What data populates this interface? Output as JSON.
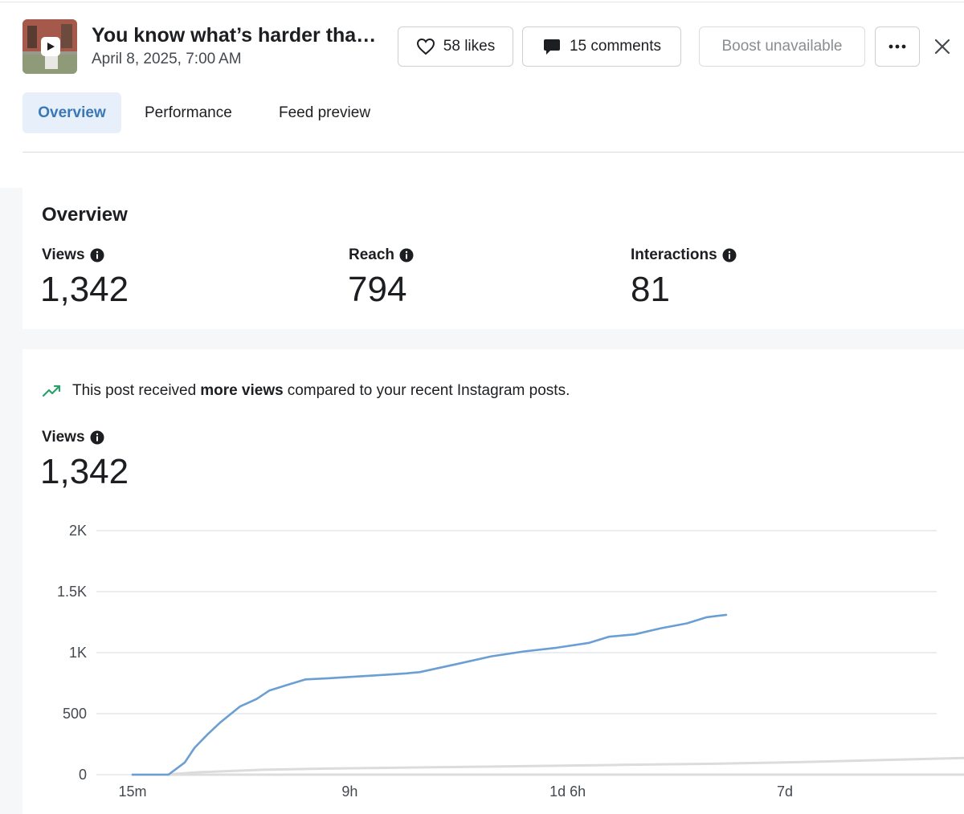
{
  "post": {
    "title": "You know what’s harder tha…",
    "date": "April 8, 2025, 7:00 AM"
  },
  "actions": {
    "likes": "58 likes",
    "comments": "15 comments",
    "boost": "Boost unavailable"
  },
  "tabs": [
    "Overview",
    "Performance",
    "Feed preview"
  ],
  "overview": {
    "title": "Overview",
    "metrics": [
      {
        "label": "Views",
        "value": "1,342"
      },
      {
        "label": "Reach",
        "value": "794"
      },
      {
        "label": "Interactions",
        "value": "81"
      }
    ]
  },
  "insight": {
    "pre": "This post received",
    "bold": "more views",
    "post": "compared to your recent Instagram posts."
  },
  "views_chart": {
    "label": "Views",
    "value": "1,342"
  },
  "colors": {
    "accent": "#3a78b5",
    "series_main": "#6b9fd4",
    "series_baseline": "#dcdcdc",
    "trend_icon": "#2aa06b"
  },
  "chart_data": {
    "type": "line",
    "y_ticks": [
      "0",
      "500",
      "1K",
      "1.5K",
      "2K"
    ],
    "y_tick_values": [
      0,
      500,
      1000,
      1500,
      2000
    ],
    "ylim": [
      0,
      2000
    ],
    "x_ticks": [
      "15m",
      "9h",
      "1d 6h",
      "7d"
    ],
    "x_tick_positions": [
      0.0,
      0.333,
      0.667,
      1.0
    ],
    "grid": true,
    "series": [
      {
        "values": [
          [
            0.0,
            0
          ],
          [
            0.04,
            0
          ],
          [
            0.055,
            0
          ],
          [
            0.08,
            100
          ],
          [
            0.095,
            220
          ],
          [
            0.115,
            330
          ],
          [
            0.135,
            430
          ],
          [
            0.165,
            560
          ],
          [
            0.19,
            620
          ],
          [
            0.21,
            690
          ],
          [
            0.24,
            740
          ],
          [
            0.265,
            780
          ],
          [
            0.3,
            790
          ],
          [
            0.33,
            800
          ],
          [
            0.36,
            810
          ],
          [
            0.39,
            820
          ],
          [
            0.42,
            830
          ],
          [
            0.44,
            840
          ],
          [
            0.5,
            910
          ],
          [
            0.55,
            970
          ],
          [
            0.6,
            1010
          ],
          [
            0.65,
            1040
          ],
          [
            0.7,
            1080
          ],
          [
            0.73,
            1130
          ],
          [
            0.77,
            1150
          ],
          [
            0.81,
            1200
          ],
          [
            0.85,
            1240
          ],
          [
            0.88,
            1290
          ],
          [
            0.91,
            1310
          ]
        ]
      },
      {
        "values": [
          [
            0.05,
            0
          ],
          [
            0.1,
            20
          ],
          [
            0.2,
            40
          ],
          [
            0.3,
            50
          ],
          [
            0.45,
            60
          ],
          [
            0.6,
            70
          ],
          [
            0.75,
            80
          ],
          [
            0.9,
            90
          ],
          [
            1.0,
            100
          ],
          [
            1.15,
            120
          ],
          [
            1.3,
            140
          ],
          [
            1.37,
            140
          ]
        ]
      },
      {
        "values": [
          [
            0.0,
            0
          ],
          [
            1.37,
            0
          ]
        ]
      }
    ]
  }
}
